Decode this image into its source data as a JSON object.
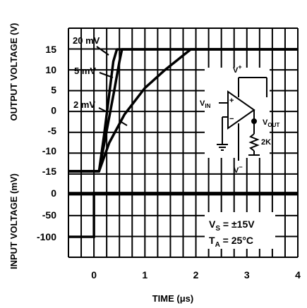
{
  "chart_data": [
    {
      "type": "line",
      "panel": "output",
      "ylabel": "OUTPUT VOLTAGE (V)",
      "yticks": [
        "15",
        "10",
        "5",
        "0",
        "-5",
        "-10",
        "-15"
      ],
      "ylim": [
        -15,
        15
      ],
      "xlim": [
        -0.5,
        4
      ],
      "grid": true,
      "series": [
        {
          "name": "20 mV",
          "x": [
            -0.5,
            0.1,
            0.2,
            0.3,
            0.38,
            0.45,
            4.0
          ],
          "y": [
            -15,
            -15,
            -6,
            4,
            12,
            15,
            15
          ]
        },
        {
          "name": "5 mV",
          "x": [
            -0.5,
            0.1,
            0.25,
            0.4,
            0.5,
            0.55,
            4.0
          ],
          "y": [
            -15,
            -15,
            -5,
            5,
            12,
            15,
            15
          ]
        },
        {
          "name": "2 mV",
          "x": [
            -0.5,
            0.1,
            0.3,
            0.6,
            1.0,
            1.4,
            1.75,
            1.9,
            4.0
          ],
          "y": [
            -15,
            -15,
            -8,
            -1,
            5.5,
            10,
            13.5,
            15,
            15
          ]
        }
      ],
      "annotations": {
        "schematic": {
          "vplus": "V",
          "vplus_sup": "+",
          "vin": "V",
          "vin_sub": "IN",
          "vout": "V",
          "vout_sub": "OUT",
          "r": "2K",
          "vminus": "V",
          "vminus_sup": "−",
          "plus": "+",
          "minus": "−"
        }
      }
    },
    {
      "type": "line",
      "panel": "input",
      "ylabel": "INPUT VOLTAGE (mV)",
      "yticks": [
        "0",
        "-50",
        "-100"
      ],
      "ylim": [
        -100,
        0
      ],
      "xlim": [
        -0.5,
        4
      ],
      "xlabel": "TIME (μs)",
      "xticks": [
        "0",
        "1",
        "2",
        "3",
        "4"
      ],
      "grid": true,
      "series": [
        {
          "x": [
            -0.5,
            0.0,
            0.0,
            4.0
          ],
          "y": [
            -100,
            -100,
            0,
            0
          ]
        }
      ],
      "annotations": {
        "vs_line": {
          "a": "V",
          "sub": "S",
          "b": " = ±15V"
        },
        "ta_line": {
          "a": "T",
          "sub": "A",
          "b": " = 25°C"
        }
      }
    }
  ]
}
